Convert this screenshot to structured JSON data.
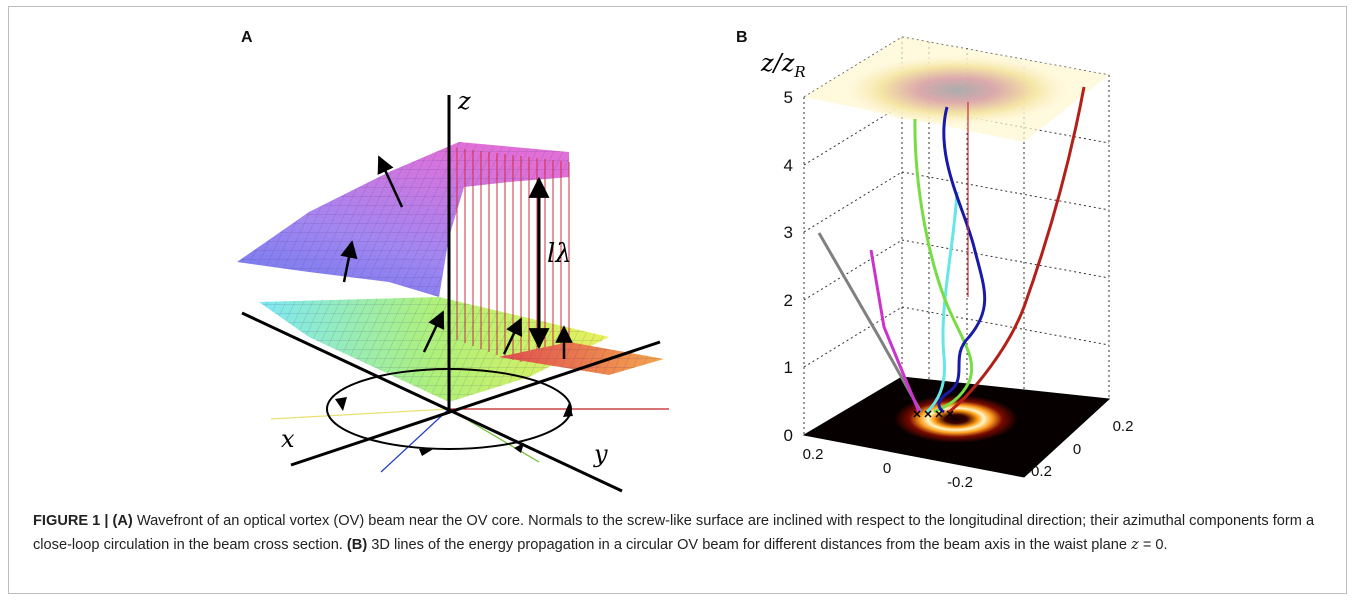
{
  "figure": {
    "panel_a_label": "A",
    "panel_b_label": "B",
    "caption": {
      "title": "FIGURE 1 |",
      "part_a_tag": "(A)",
      "part_a_text": " Wavefront of an optical vortex (OV) beam near the OV core. Normals to the screw-like surface are inclined with respect to the longitudinal direction; their azimuthal components form a close-loop circulation in the beam cross section. ",
      "part_b_tag": "(B)",
      "part_b_text": " 3D lines of the energy propagation in a circular OV beam for different distances from the beam axis in the waist plane ",
      "equation_var": "z",
      "equation_rest": " = 0."
    }
  },
  "panel_a": {
    "axis_z_label": "z",
    "axis_x_label": "x",
    "axis_y_label": "y",
    "step_label": "lλ"
  },
  "panel_b": {
    "z_axis_label": "z/z",
    "z_axis_subscript": "R",
    "z_ticks": [
      "0",
      "1",
      "2",
      "3",
      "4",
      "5"
    ],
    "x_ticks": [
      "0.2",
      "0",
      "-0.2"
    ],
    "y_ticks": [
      "0.2",
      "0",
      "-0.2"
    ],
    "trajectory_colors": [
      "#808080",
      "#cc33cc",
      "#66e6e6",
      "#77dd44",
      "#1a1aa8",
      "#b3201a"
    ]
  }
}
